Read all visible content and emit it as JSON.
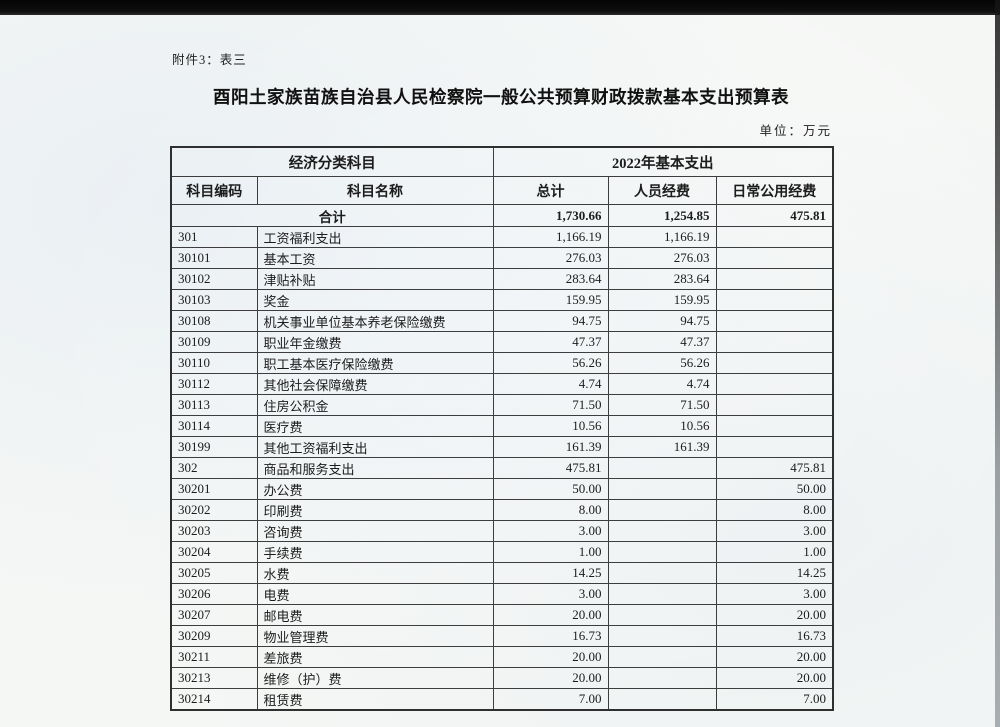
{
  "page": {
    "attachment_note": "附件3：表三",
    "title": "酉阳土家族苗族自治县人民检察院一般公共预算财政拨款基本支出预算表",
    "unit_note": "单位：万元"
  },
  "colors": {
    "paper": "#f5f7f5",
    "scan_bar": "#0d0d0d",
    "ink": "#1f1f1f",
    "table_border": "#3d3d3d"
  },
  "table": {
    "group_headers": {
      "left": "经济分类科目",
      "right": "2022年基本支出"
    },
    "columns": {
      "code": "科目编码",
      "name": "科目名称",
      "total": "总计",
      "personnel": "人员经费",
      "daily": "日常公用经费"
    },
    "total_row": {
      "label": "合计",
      "total": "1,730.66",
      "personnel": "1,254.85",
      "daily": "475.81"
    },
    "rows": [
      {
        "code": "301",
        "name": "工资福利支出",
        "total": "1,166.19",
        "personnel": "1,166.19",
        "daily": ""
      },
      {
        "code": "30101",
        "name": "基本工资",
        "total": "276.03",
        "personnel": "276.03",
        "daily": ""
      },
      {
        "code": "30102",
        "name": "津贴补贴",
        "total": "283.64",
        "personnel": "283.64",
        "daily": ""
      },
      {
        "code": "30103",
        "name": "奖金",
        "total": "159.95",
        "personnel": "159.95",
        "daily": ""
      },
      {
        "code": "30108",
        "name": "机关事业单位基本养老保险缴费",
        "total": "94.75",
        "personnel": "94.75",
        "daily": ""
      },
      {
        "code": "30109",
        "name": "职业年金缴费",
        "total": "47.37",
        "personnel": "47.37",
        "daily": ""
      },
      {
        "code": "30110",
        "name": "职工基本医疗保险缴费",
        "total": "56.26",
        "personnel": "56.26",
        "daily": ""
      },
      {
        "code": "30112",
        "name": "其他社会保障缴费",
        "total": "4.74",
        "personnel": "4.74",
        "daily": ""
      },
      {
        "code": "30113",
        "name": "住房公积金",
        "total": "71.50",
        "personnel": "71.50",
        "daily": ""
      },
      {
        "code": "30114",
        "name": "医疗费",
        "total": "10.56",
        "personnel": "10.56",
        "daily": ""
      },
      {
        "code": "30199",
        "name": "其他工资福利支出",
        "total": "161.39",
        "personnel": "161.39",
        "daily": ""
      },
      {
        "code": "302",
        "name": "商品和服务支出",
        "total": "475.81",
        "personnel": "",
        "daily": "475.81"
      },
      {
        "code": "30201",
        "name": "办公费",
        "total": "50.00",
        "personnel": "",
        "daily": "50.00"
      },
      {
        "code": "30202",
        "name": "印刷费",
        "total": "8.00",
        "personnel": "",
        "daily": "8.00"
      },
      {
        "code": "30203",
        "name": "咨询费",
        "total": "3.00",
        "personnel": "",
        "daily": "3.00"
      },
      {
        "code": "30204",
        "name": "手续费",
        "total": "1.00",
        "personnel": "",
        "daily": "1.00"
      },
      {
        "code": "30205",
        "name": "水费",
        "total": "14.25",
        "personnel": "",
        "daily": "14.25"
      },
      {
        "code": "30206",
        "name": "电费",
        "total": "3.00",
        "personnel": "",
        "daily": "3.00"
      },
      {
        "code": "30207",
        "name": "邮电费",
        "total": "20.00",
        "personnel": "",
        "daily": "20.00"
      },
      {
        "code": "30209",
        "name": "物业管理费",
        "total": "16.73",
        "personnel": "",
        "daily": "16.73"
      },
      {
        "code": "30211",
        "name": "差旅费",
        "total": "20.00",
        "personnel": "",
        "daily": "20.00"
      },
      {
        "code": "30213",
        "name": "维修（护）费",
        "total": "20.00",
        "personnel": "",
        "daily": "20.00"
      },
      {
        "code": "30214",
        "name": "租赁费",
        "total": "7.00",
        "personnel": "",
        "daily": "7.00"
      }
    ]
  }
}
